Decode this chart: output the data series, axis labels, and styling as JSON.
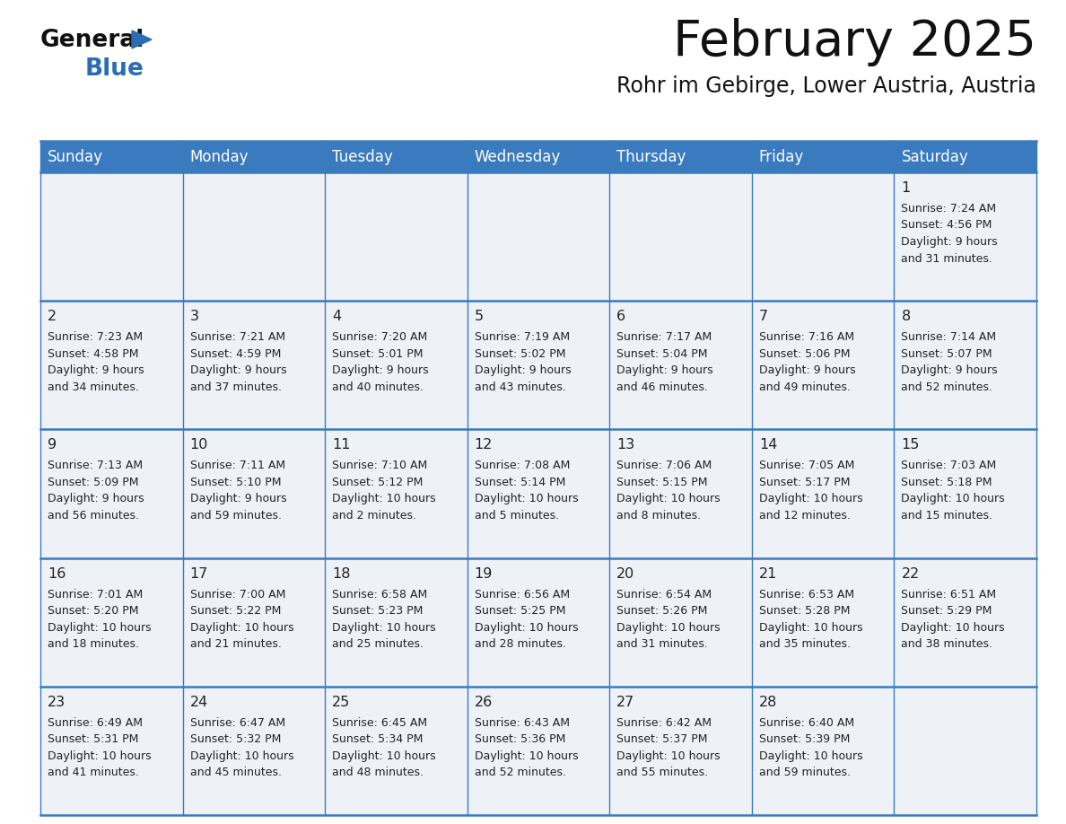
{
  "title": "February 2025",
  "subtitle": "Rohr im Gebirge, Lower Austria, Austria",
  "header_bg": "#3a7abf",
  "header_text_color": "#ffffff",
  "cell_bg_light": "#eef2f7",
  "border_color": "#3a7abf",
  "text_color": "#222222",
  "day_headers": [
    "Sunday",
    "Monday",
    "Tuesday",
    "Wednesday",
    "Thursday",
    "Friday",
    "Saturday"
  ],
  "logo_general_color": "#111111",
  "logo_blue_color": "#2a6db5",
  "title_color": "#111111",
  "subtitle_color": "#111111",
  "days": [
    {
      "day": 1,
      "col": 6,
      "row": 0,
      "sunrise": "7:24 AM",
      "sunset": "4:56 PM",
      "daylight_hours": "9",
      "daylight_minutes": "31"
    },
    {
      "day": 2,
      "col": 0,
      "row": 1,
      "sunrise": "7:23 AM",
      "sunset": "4:58 PM",
      "daylight_hours": "9",
      "daylight_minutes": "34"
    },
    {
      "day": 3,
      "col": 1,
      "row": 1,
      "sunrise": "7:21 AM",
      "sunset": "4:59 PM",
      "daylight_hours": "9",
      "daylight_minutes": "37"
    },
    {
      "day": 4,
      "col": 2,
      "row": 1,
      "sunrise": "7:20 AM",
      "sunset": "5:01 PM",
      "daylight_hours": "9",
      "daylight_minutes": "40"
    },
    {
      "day": 5,
      "col": 3,
      "row": 1,
      "sunrise": "7:19 AM",
      "sunset": "5:02 PM",
      "daylight_hours": "9",
      "daylight_minutes": "43"
    },
    {
      "day": 6,
      "col": 4,
      "row": 1,
      "sunrise": "7:17 AM",
      "sunset": "5:04 PM",
      "daylight_hours": "9",
      "daylight_minutes": "46"
    },
    {
      "day": 7,
      "col": 5,
      "row": 1,
      "sunrise": "7:16 AM",
      "sunset": "5:06 PM",
      "daylight_hours": "9",
      "daylight_minutes": "49"
    },
    {
      "day": 8,
      "col": 6,
      "row": 1,
      "sunrise": "7:14 AM",
      "sunset": "5:07 PM",
      "daylight_hours": "9",
      "daylight_minutes": "52"
    },
    {
      "day": 9,
      "col": 0,
      "row": 2,
      "sunrise": "7:13 AM",
      "sunset": "5:09 PM",
      "daylight_hours": "9",
      "daylight_minutes": "56"
    },
    {
      "day": 10,
      "col": 1,
      "row": 2,
      "sunrise": "7:11 AM",
      "sunset": "5:10 PM",
      "daylight_hours": "9",
      "daylight_minutes": "59"
    },
    {
      "day": 11,
      "col": 2,
      "row": 2,
      "sunrise": "7:10 AM",
      "sunset": "5:12 PM",
      "daylight_hours": "10",
      "daylight_minutes": "2"
    },
    {
      "day": 12,
      "col": 3,
      "row": 2,
      "sunrise": "7:08 AM",
      "sunset": "5:14 PM",
      "daylight_hours": "10",
      "daylight_minutes": "5"
    },
    {
      "day": 13,
      "col": 4,
      "row": 2,
      "sunrise": "7:06 AM",
      "sunset": "5:15 PM",
      "daylight_hours": "10",
      "daylight_minutes": "8"
    },
    {
      "day": 14,
      "col": 5,
      "row": 2,
      "sunrise": "7:05 AM",
      "sunset": "5:17 PM",
      "daylight_hours": "10",
      "daylight_minutes": "12"
    },
    {
      "day": 15,
      "col": 6,
      "row": 2,
      "sunrise": "7:03 AM",
      "sunset": "5:18 PM",
      "daylight_hours": "10",
      "daylight_minutes": "15"
    },
    {
      "day": 16,
      "col": 0,
      "row": 3,
      "sunrise": "7:01 AM",
      "sunset": "5:20 PM",
      "daylight_hours": "10",
      "daylight_minutes": "18"
    },
    {
      "day": 17,
      "col": 1,
      "row": 3,
      "sunrise": "7:00 AM",
      "sunset": "5:22 PM",
      "daylight_hours": "10",
      "daylight_minutes": "21"
    },
    {
      "day": 18,
      "col": 2,
      "row": 3,
      "sunrise": "6:58 AM",
      "sunset": "5:23 PM",
      "daylight_hours": "10",
      "daylight_minutes": "25"
    },
    {
      "day": 19,
      "col": 3,
      "row": 3,
      "sunrise": "6:56 AM",
      "sunset": "5:25 PM",
      "daylight_hours": "10",
      "daylight_minutes": "28"
    },
    {
      "day": 20,
      "col": 4,
      "row": 3,
      "sunrise": "6:54 AM",
      "sunset": "5:26 PM",
      "daylight_hours": "10",
      "daylight_minutes": "31"
    },
    {
      "day": 21,
      "col": 5,
      "row": 3,
      "sunrise": "6:53 AM",
      "sunset": "5:28 PM",
      "daylight_hours": "10",
      "daylight_minutes": "35"
    },
    {
      "day": 22,
      "col": 6,
      "row": 3,
      "sunrise": "6:51 AM",
      "sunset": "5:29 PM",
      "daylight_hours": "10",
      "daylight_minutes": "38"
    },
    {
      "day": 23,
      "col": 0,
      "row": 4,
      "sunrise": "6:49 AM",
      "sunset": "5:31 PM",
      "daylight_hours": "10",
      "daylight_minutes": "41"
    },
    {
      "day": 24,
      "col": 1,
      "row": 4,
      "sunrise": "6:47 AM",
      "sunset": "5:32 PM",
      "daylight_hours": "10",
      "daylight_minutes": "45"
    },
    {
      "day": 25,
      "col": 2,
      "row": 4,
      "sunrise": "6:45 AM",
      "sunset": "5:34 PM",
      "daylight_hours": "10",
      "daylight_minutes": "48"
    },
    {
      "day": 26,
      "col": 3,
      "row": 4,
      "sunrise": "6:43 AM",
      "sunset": "5:36 PM",
      "daylight_hours": "10",
      "daylight_minutes": "52"
    },
    {
      "day": 27,
      "col": 4,
      "row": 4,
      "sunrise": "6:42 AM",
      "sunset": "5:37 PM",
      "daylight_hours": "10",
      "daylight_minutes": "55"
    },
    {
      "day": 28,
      "col": 5,
      "row": 4,
      "sunrise": "6:40 AM",
      "sunset": "5:39 PM",
      "daylight_hours": "10",
      "daylight_minutes": "59"
    }
  ]
}
